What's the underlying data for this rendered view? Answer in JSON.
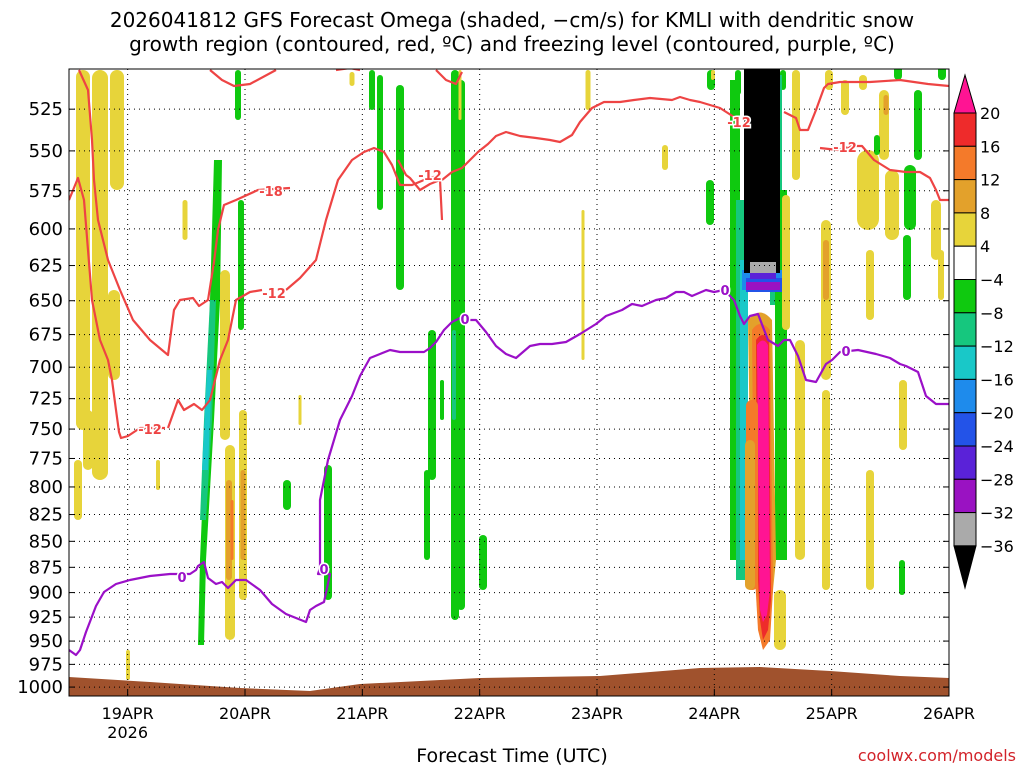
{
  "title_line1": "2026041812 GFS Forecast Omega (shaded, −cm/s) for KMLI with dendritic snow",
  "title_line2": "growth region (contoured, red, ºC) and freezing level (contoured, purple, ºC)",
  "xlabel": "Forecast Time (UTC)",
  "credit": "coolwx.com/models",
  "chart_data": {
    "type": "heatmap",
    "xlabel": "Forecast Time (UTC)",
    "ylabel": "",
    "y_log_scale": true,
    "y_ticks": [
      525,
      550,
      575,
      600,
      625,
      650,
      675,
      700,
      725,
      750,
      775,
      800,
      825,
      850,
      875,
      900,
      925,
      950,
      975,
      1000
    ],
    "ylim": [
      1010,
      502
    ],
    "x_ticks": [
      "19APR",
      "20APR",
      "21APR",
      "22APR",
      "23APR",
      "24APR",
      "25APR",
      "26APR"
    ],
    "x_year_label": "2026",
    "xlim_days_from_19APR": [
      -0.5,
      7.0
    ],
    "colorbar": {
      "tick_labels": [
        "20",
        "16",
        "12",
        "8",
        "4",
        "−4",
        "−8",
        "−12",
        "−16",
        "−20",
        "−24",
        "−28",
        "−32",
        "−36"
      ],
      "colors": [
        "#ff1493",
        "#ee2b2b",
        "#f47a2a",
        "#e3a12b",
        "#e7d43a",
        "#ffffff",
        "#0fc90f",
        "#16c77e",
        "#19c8c8",
        "#1e8bec",
        "#2353e8",
        "#5a22d8",
        "#9a12c2",
        "#aaaaaa",
        "#000000"
      ]
    },
    "contours": {
      "dgz_red_label_values": [
        "-18",
        "-12",
        "-12",
        "-12",
        "-12",
        "-12"
      ],
      "freezing_level_purple_label_value": "0"
    },
    "terrain_color": "#a0522d",
    "grid": true
  }
}
